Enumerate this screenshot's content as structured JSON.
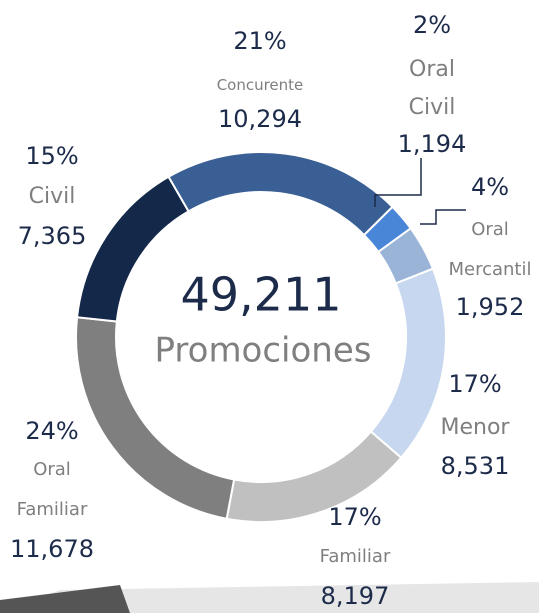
{
  "chart_data": {
    "type": "donut",
    "center_value": 49211,
    "center_value_label": "49,211",
    "center_label": "Promociones",
    "categories": [
      "Concurente",
      "Oral Civil",
      "Oral Mercantil",
      "Menor",
      "Familiar",
      "Oral Familiar",
      "Civil"
    ],
    "values": [
      10294,
      1194,
      1952,
      8531,
      8197,
      11678,
      7365
    ],
    "value_labels": [
      "10,294",
      "1,194",
      "1,952",
      "8,531",
      "8,197",
      "11,678",
      "7,365"
    ],
    "percent_labels": [
      "21%",
      "2%",
      "4%",
      "17%",
      "17%",
      "24%",
      "15%"
    ],
    "colors": [
      "#3a5f94",
      "#4a86d8",
      "#9ab4d8",
      "#c6d7ef",
      "#c0c0c0",
      "#7f7f7f",
      "#14284a"
    ]
  }
}
